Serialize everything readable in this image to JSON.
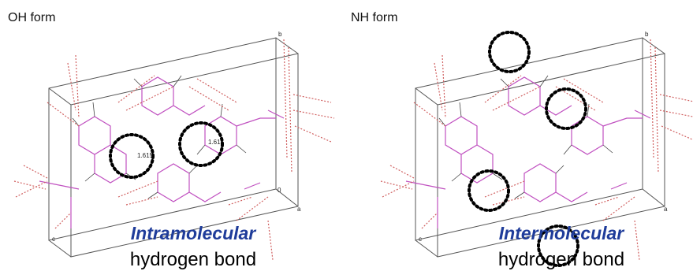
{
  "panels": [
    {
      "title": "OH form",
      "caption_emphasis": "Intramolecular",
      "caption": "hydrogen bond",
      "distance_labels": [
        "1.615",
        "1.615"
      ],
      "axis_labels": [
        "b",
        "a",
        "c",
        "0"
      ]
    },
    {
      "title": "NH form",
      "caption_emphasis": "Intermolecular",
      "caption": "hydrogen bond",
      "axis_labels": [
        "b",
        "a",
        "c"
      ]
    }
  ]
}
